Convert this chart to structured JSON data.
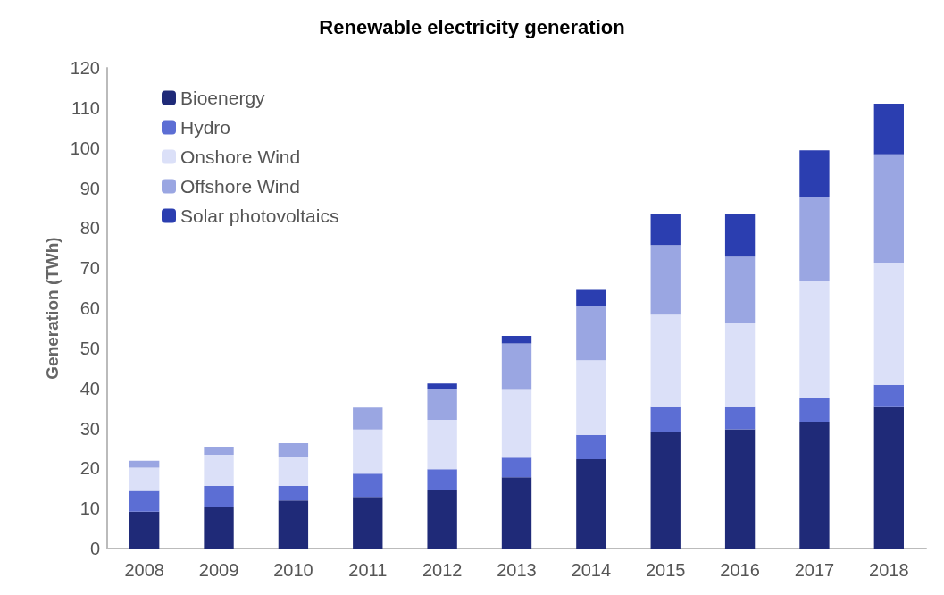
{
  "chart_data": {
    "type": "bar",
    "title": "Renewable electricity generation",
    "ylabel": "Generation (TWh)",
    "stacked": true,
    "legend": "top left",
    "grid": false,
    "categories": [
      "2008",
      "2009",
      "2010",
      "2011",
      "2012",
      "2013",
      "2014",
      "2015",
      "2016",
      "2017",
      "2018"
    ],
    "ylim": [
      0,
      120
    ],
    "yticks": [
      0,
      10,
      20,
      30,
      40,
      50,
      60,
      70,
      80,
      90,
      100,
      110,
      120
    ],
    "series": [
      {
        "name": "Bioenergy",
        "color": "#1f2a78",
        "values": [
          9.2,
          10.3,
          12.0,
          12.9,
          14.5,
          17.8,
          22.3,
          29.0,
          29.8,
          31.7,
          35.3
        ]
      },
      {
        "name": "Hydro",
        "color": "#5c6ed4",
        "values": [
          5.2,
          5.3,
          3.6,
          5.8,
          5.3,
          4.9,
          6.1,
          6.3,
          5.5,
          5.9,
          5.6
        ]
      },
      {
        "name": "Onshore Wind",
        "color": "#dbe0f8",
        "values": [
          5.8,
          7.8,
          7.4,
          11.0,
          12.3,
          17.1,
          18.6,
          23.1,
          21.1,
          29.2,
          30.5
        ]
      },
      {
        "name": "Offshore Wind",
        "color": "#9aa6e2",
        "values": [
          1.7,
          2.0,
          3.3,
          5.5,
          7.8,
          11.4,
          13.6,
          17.4,
          16.5,
          21.1,
          27.0
        ]
      },
      {
        "name": "Solar photovoltaics",
        "color": "#2b3eb0",
        "values": [
          0,
          0,
          0,
          0,
          1.3,
          1.9,
          4.0,
          7.6,
          10.5,
          11.5,
          12.7
        ]
      }
    ]
  }
}
